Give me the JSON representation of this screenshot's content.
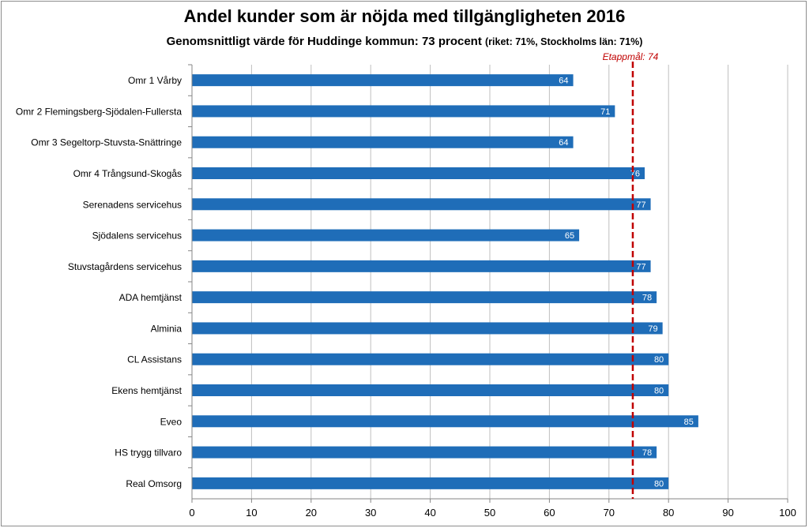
{
  "chart_data": {
    "type": "bar",
    "orientation": "horizontal",
    "title": "Andel kunder som är nöjda med tillgängligheten 2016",
    "subtitle_main": "Genomsnittligt värde för Huddinge kommun: 73 procent",
    "subtitle_extra": "(riket: 71%, Stockholms län: 71%)",
    "categories": [
      "Omr 1 Vårby",
      "Omr 2 Flemingsberg-Sjödalen-Fullersta",
      "Omr 3 Segeltorp-Stuvsta-Snättringe",
      "Omr 4 Trångsund-Skogås",
      "Serenadens servicehus",
      "Sjödalens servicehus",
      "Stuvstagårdens servicehus",
      "ADA hemtjänst",
      "Alminia",
      "CL Assistans",
      "Ekens hemtjänst",
      "Eveo",
      "HS trygg tillvaro",
      "Real Omsorg"
    ],
    "values": [
      64,
      71,
      64,
      76,
      77,
      65,
      77,
      78,
      79,
      80,
      80,
      85,
      78,
      80
    ],
    "xlim": [
      0,
      100
    ],
    "xticks": [
      0,
      10,
      20,
      30,
      40,
      50,
      60,
      70,
      80,
      90,
      100
    ],
    "xlabel": "",
    "ylabel": "",
    "grid": true,
    "reference_line": {
      "value": 74,
      "label": "Etappmål: 74",
      "style": "dashed"
    },
    "colors": {
      "bar": "#1f6db8",
      "reference": "#c00000",
      "grid": "#bfbfbf",
      "label_text": "#ffffff"
    }
  }
}
